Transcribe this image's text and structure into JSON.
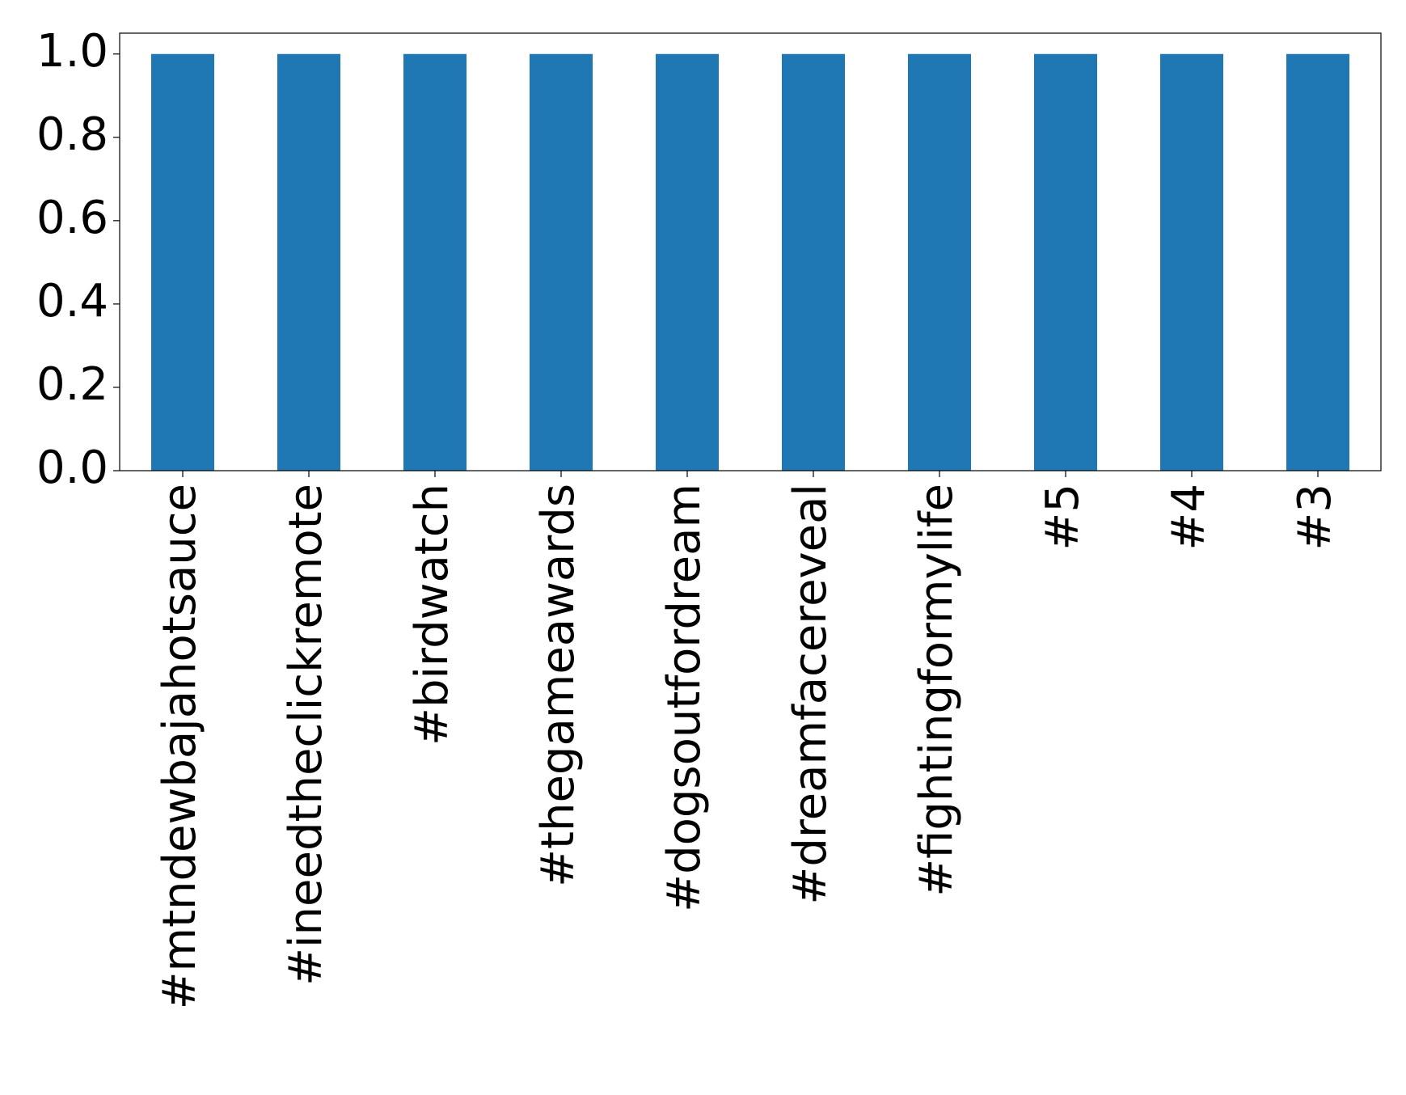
{
  "chart_data": {
    "type": "bar",
    "categories": [
      "#mtndewbajahotsauce",
      "#ineedtheclickremote",
      "#birdwatch",
      "#thegameawards",
      "#dogsoutfordream",
      "#dreamfacereveal",
      "#fightingformylife",
      "#5",
      "#4",
      "#3"
    ],
    "values": [
      1,
      1,
      1,
      1,
      1,
      1,
      1,
      1,
      1,
      1
    ],
    "color": "#1f77b4",
    "ylim": [
      0,
      1.05
    ],
    "yticks": [
      {
        "value": 0,
        "label": "0.0"
      },
      {
        "value": 0.2,
        "label": "0.2"
      },
      {
        "value": 0.4,
        "label": "0.4"
      },
      {
        "value": 0.6,
        "label": "0.6"
      },
      {
        "value": 0.8,
        "label": "0.8"
      },
      {
        "value": 1,
        "label": "1.0"
      }
    ],
    "grid": false
  }
}
